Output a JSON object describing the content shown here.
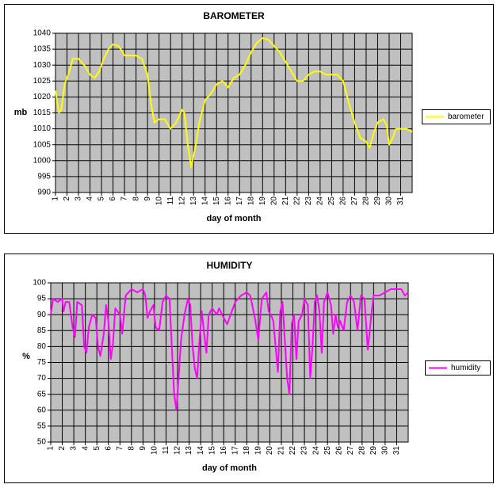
{
  "chart_data": [
    {
      "type": "line",
      "title": "BAROMETER",
      "xlabel": "day of month",
      "ylabel": "mb",
      "x": [
        1,
        1.3,
        1.5,
        1.8,
        2.2,
        2.5,
        3,
        3.5,
        4,
        4.4,
        4.8,
        5.2,
        5.6,
        6,
        6.5,
        7,
        7.5,
        8,
        8.5,
        9,
        9.3,
        9.6,
        10,
        10.5,
        11,
        11.5,
        12,
        12.2,
        12.5,
        12.8,
        13.2,
        13.5,
        14,
        14.5,
        15,
        15.5,
        16,
        16.5,
        17,
        17.5,
        18,
        18.5,
        19,
        19.5,
        20,
        20.5,
        21,
        21.5,
        22,
        22.5,
        23,
        23.5,
        24,
        24.5,
        25,
        25.5,
        26,
        26.5,
        27,
        27.5,
        28,
        28.3,
        28.6,
        29,
        29.5,
        29.8,
        30,
        30.3,
        30.6,
        31,
        31.5,
        32
      ],
      "series": [
        {
          "name": "barometer",
          "color": "#ffff00",
          "values": [
            1022,
            1015,
            1016,
            1024,
            1028,
            1032,
            1032,
            1030,
            1027,
            1026,
            1028,
            1032,
            1035,
            1036.5,
            1036,
            1033,
            1033,
            1033,
            1032,
            1027,
            1018,
            1012,
            1013,
            1013,
            1010,
            1012,
            1016,
            1015,
            1005,
            998,
            1005,
            1012,
            1019,
            1021,
            1024,
            1025,
            1023,
            1026,
            1027,
            1030,
            1034,
            1037,
            1038.5,
            1038,
            1036,
            1034,
            1031,
            1028,
            1025,
            1025,
            1027,
            1028,
            1028,
            1027,
            1027,
            1027,
            1025,
            1018,
            1012,
            1007,
            1006,
            1004,
            1008,
            1012,
            1013,
            1011,
            1005,
            1007,
            1010,
            1010,
            1010,
            1009
          ]
        }
      ],
      "xlim": [
        1,
        32
      ],
      "xticks": [
        1,
        2,
        3,
        4,
        5,
        6,
        7,
        8,
        9,
        10,
        11,
        12,
        13,
        14,
        15,
        16,
        17,
        18,
        19,
        20,
        21,
        22,
        23,
        24,
        25,
        26,
        27,
        28,
        29,
        30,
        31
      ],
      "ylim": [
        990,
        1040
      ],
      "yticks": [
        990,
        995,
        1000,
        1005,
        1010,
        1015,
        1020,
        1025,
        1030,
        1035,
        1040
      ],
      "grid": true,
      "legend": "right"
    },
    {
      "type": "line",
      "title": "HUMIDITY",
      "xlabel": "day of month",
      "ylabel": "%",
      "x": [
        1,
        1.2,
        1.6,
        2,
        2.1,
        2.3,
        2.6,
        2.9,
        3.1,
        3.3,
        3.7,
        3.9,
        4.1,
        4.3,
        4.6,
        4.9,
        5.1,
        5.3,
        5.6,
        5.8,
        6,
        6.2,
        6.4,
        6.6,
        7,
        7.2,
        7.5,
        8,
        8.5,
        9,
        9.2,
        9.4,
        9.6,
        9.9,
        10.1,
        10.4,
        10.7,
        11,
        11.3,
        11.5,
        11.7,
        11.9,
        12.1,
        12.3,
        12.6,
        12.9,
        13.1,
        13.3,
        13.5,
        13.7,
        13.9,
        14.1,
        14.3,
        14.5,
        14.7,
        15,
        15.4,
        15.6,
        16,
        16.3,
        16.7,
        17,
        17.5,
        18,
        18.3,
        18.7,
        19,
        19.3,
        19.7,
        19.9,
        20.1,
        20.3,
        20.5,
        20.7,
        20.9,
        21.1,
        21.3,
        21.5,
        21.7,
        21.9,
        22.1,
        22.3,
        22.5,
        22.8,
        23,
        23.3,
        23.5,
        23.7,
        23.9,
        24.1,
        24.3,
        24.5,
        24.7,
        25,
        25.3,
        25.5,
        25.7,
        25.9,
        26.1,
        26.4,
        26.7,
        27,
        27.3,
        27.6,
        27.9,
        28.2,
        28.5,
        28.8,
        29,
        29.5,
        30,
        30.5,
        31,
        31.4,
        31.7,
        32
      ],
      "series": [
        {
          "name": "humidity",
          "color": "#ff00ff",
          "values": [
            90,
            95,
            94,
            95,
            91,
            94,
            94,
            86,
            83,
            94,
            93,
            80,
            78,
            86,
            90,
            89,
            80,
            77,
            84,
            93,
            88,
            76,
            81,
            92,
            90,
            84,
            96,
            98,
            97,
            98,
            96,
            89,
            91,
            93,
            86,
            85,
            94,
            96,
            95,
            80,
            65,
            60,
            71,
            82,
            90,
            95,
            93,
            80,
            73,
            70,
            82,
            91,
            84,
            78,
            90,
            92,
            90,
            92,
            89,
            87,
            91,
            94,
            96,
            97,
            96,
            89,
            82,
            95,
            97,
            91,
            90,
            88,
            80,
            72,
            91,
            94,
            82,
            70,
            65,
            87,
            90,
            76,
            88,
            90,
            95,
            93,
            70,
            80,
            94,
            96,
            91,
            78,
            94,
            97,
            93,
            84,
            90,
            86,
            88,
            85,
            94,
            96,
            94,
            85,
            96,
            95,
            79,
            90,
            96,
            96,
            97,
            98,
            98,
            98,
            96,
            97
          ]
        }
      ],
      "xlim": [
        1,
        32
      ],
      "xticks": [
        1,
        2,
        3,
        4,
        5,
        6,
        7,
        8,
        9,
        10,
        11,
        12,
        13,
        14,
        15,
        16,
        17,
        18,
        19,
        20,
        21,
        22,
        23,
        24,
        25,
        26,
        27,
        28,
        29,
        30,
        31
      ],
      "ylim": [
        50,
        100
      ],
      "yticks": [
        50,
        55,
        60,
        65,
        70,
        75,
        80,
        85,
        90,
        95,
        100
      ],
      "grid": true,
      "legend": "right"
    }
  ]
}
